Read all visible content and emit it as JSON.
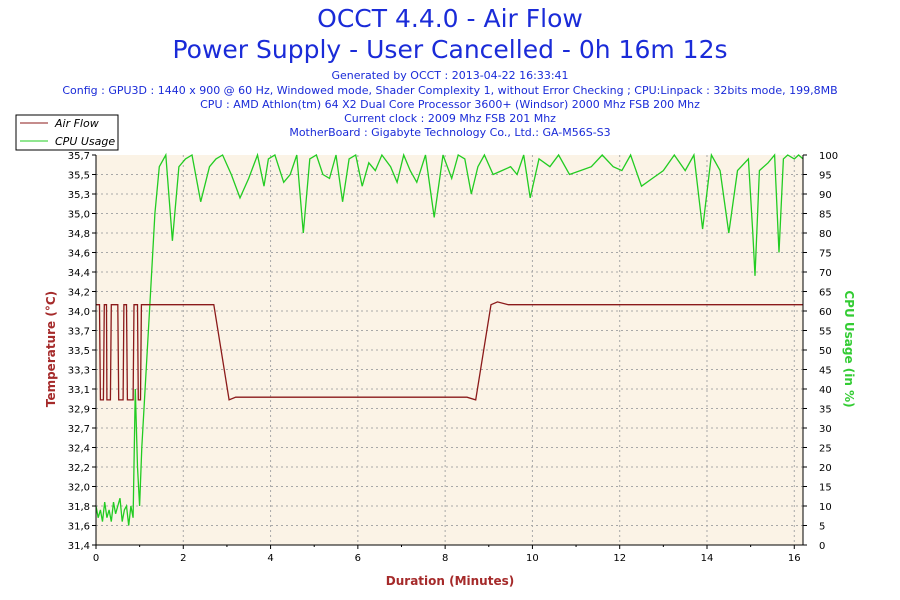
{
  "header": {
    "title": "OCCT 4.4.0 - Air Flow",
    "subtitle": "Power Supply - User Cancelled - 0h 16m 12s",
    "info_lines": [
      "Generated by OCCT : 2013-04-22 16:33:41",
      "Config : GPU3D : 1440 x 900 @ 60 Hz, Windowed mode, Shader Complexity 1, without Error Checking ; CPU:Linpack : 32bits mode, 199,8MB",
      "CPU : AMD Athlon(tm) 64 X2 Dual Core Processor 3600+ (Windsor) 2000 Mhz FSB 200 Mhz",
      "Current clock : 2009 Mhz FSB 201 Mhz",
      "MotherBoard : Gigabyte Technology Co., Ltd.: GA-M56S-S3"
    ]
  },
  "colors": {
    "title": "#1a2bd8",
    "plot_background": "#fbf3e6",
    "grid": "#a8a8a8",
    "air_flow": "#8b1a1a",
    "cpu_usage": "#22cc22",
    "left_axis_label": "#a52a2a",
    "right_axis_label": "#33cc33",
    "x_axis_label": "#a52a2a"
  },
  "chart_data": {
    "type": "line",
    "xlabel": "Duration (Minutes)",
    "ylabel": "Temperature (°C)",
    "y2label": "CPU Usage (in %)",
    "xlim": [
      0,
      16.2
    ],
    "ylim": [
      31.4,
      35.7
    ],
    "y2lim": [
      0,
      100
    ],
    "x_ticks": [
      "0",
      "2",
      "4",
      "6",
      "8",
      "10",
      "12",
      "14",
      "16"
    ],
    "y_tick_labels": [
      "31,4",
      "31,6",
      "31,8",
      "32,0",
      "32,2",
      "32,4",
      "32,7",
      "32,9",
      "33,1",
      "33,3",
      "33,5",
      "33,7",
      "34,0",
      "34,2",
      "34,4",
      "34,6",
      "34,8",
      "35,0",
      "35,3",
      "35,5",
      "35,7"
    ],
    "y2_tick_labels": [
      "0",
      "5",
      "10",
      "15",
      "20",
      "25",
      "30",
      "35",
      "40",
      "45",
      "50",
      "55",
      "60",
      "65",
      "70",
      "75",
      "80",
      "85",
      "90",
      "95",
      "100"
    ],
    "legend": {
      "position": "top-left",
      "entries": [
        "Air Flow",
        "CPU Usage"
      ]
    },
    "grid": true,
    "series": [
      {
        "name": "Air Flow",
        "axis": "left",
        "points": [
          [
            0,
            34.05
          ],
          [
            0.08,
            34.05
          ],
          [
            0.1,
            33.0
          ],
          [
            0.17,
            33.0
          ],
          [
            0.19,
            34.05
          ],
          [
            0.24,
            34.05
          ],
          [
            0.25,
            33.0
          ],
          [
            0.33,
            33.0
          ],
          [
            0.35,
            34.05
          ],
          [
            0.5,
            34.05
          ],
          [
            0.52,
            33.0
          ],
          [
            0.62,
            33.0
          ],
          [
            0.64,
            34.05
          ],
          [
            0.7,
            34.05
          ],
          [
            0.72,
            33.0
          ],
          [
            0.85,
            33.0
          ],
          [
            0.87,
            34.05
          ],
          [
            0.95,
            34.05
          ],
          [
            0.97,
            33.0
          ],
          [
            1.02,
            33.0
          ],
          [
            1.04,
            34.05
          ],
          [
            2.7,
            34.05
          ],
          [
            3.05,
            33.0
          ],
          [
            3.2,
            33.03
          ],
          [
            8.5,
            33.03
          ],
          [
            8.7,
            33.0
          ],
          [
            9.05,
            34.05
          ],
          [
            9.2,
            34.08
          ],
          [
            9.45,
            34.05
          ],
          [
            16.2,
            34.05
          ]
        ]
      },
      {
        "name": "CPU Usage",
        "axis": "right",
        "points": [
          [
            0,
            10
          ],
          [
            0.05,
            7
          ],
          [
            0.1,
            9
          ],
          [
            0.15,
            6
          ],
          [
            0.2,
            11
          ],
          [
            0.25,
            7
          ],
          [
            0.3,
            9
          ],
          [
            0.35,
            6
          ],
          [
            0.4,
            11
          ],
          [
            0.45,
            8
          ],
          [
            0.5,
            10
          ],
          [
            0.55,
            12
          ],
          [
            0.6,
            6
          ],
          [
            0.65,
            9
          ],
          [
            0.7,
            10
          ],
          [
            0.75,
            5
          ],
          [
            0.8,
            10
          ],
          [
            0.85,
            7
          ],
          [
            0.9,
            40
          ],
          [
            0.95,
            20
          ],
          [
            1.0,
            10
          ],
          [
            1.05,
            25
          ],
          [
            1.15,
            45
          ],
          [
            1.25,
            65
          ],
          [
            1.35,
            85
          ],
          [
            1.45,
            97
          ],
          [
            1.6,
            100
          ],
          [
            1.75,
            78
          ],
          [
            1.9,
            97
          ],
          [
            2.05,
            99
          ],
          [
            2.2,
            100
          ],
          [
            2.4,
            88
          ],
          [
            2.6,
            97
          ],
          [
            2.75,
            99
          ],
          [
            2.9,
            100
          ],
          [
            3.1,
            95
          ],
          [
            3.3,
            89
          ],
          [
            3.5,
            94
          ],
          [
            3.7,
            100
          ],
          [
            3.85,
            92
          ],
          [
            3.95,
            99
          ],
          [
            4.1,
            100
          ],
          [
            4.3,
            93
          ],
          [
            4.45,
            95
          ],
          [
            4.6,
            100
          ],
          [
            4.75,
            80
          ],
          [
            4.9,
            99
          ],
          [
            5.05,
            100
          ],
          [
            5.2,
            95
          ],
          [
            5.35,
            94
          ],
          [
            5.5,
            100
          ],
          [
            5.65,
            88
          ],
          [
            5.8,
            99
          ],
          [
            5.95,
            100
          ],
          [
            6.1,
            92
          ],
          [
            6.25,
            98
          ],
          [
            6.4,
            96
          ],
          [
            6.55,
            100
          ],
          [
            6.75,
            97
          ],
          [
            6.9,
            93
          ],
          [
            7.05,
            100
          ],
          [
            7.2,
            96
          ],
          [
            7.35,
            93
          ],
          [
            7.55,
            100
          ],
          [
            7.75,
            84
          ],
          [
            7.95,
            100
          ],
          [
            8.15,
            94
          ],
          [
            8.3,
            100
          ],
          [
            8.45,
            99
          ],
          [
            8.6,
            90
          ],
          [
            8.75,
            97
          ],
          [
            8.9,
            100
          ],
          [
            9.1,
            95
          ],
          [
            9.3,
            96
          ],
          [
            9.5,
            97
          ],
          [
            9.65,
            95
          ],
          [
            9.8,
            100
          ],
          [
            9.95,
            89
          ],
          [
            10.15,
            99
          ],
          [
            10.4,
            97
          ],
          [
            10.6,
            100
          ],
          [
            10.85,
            95
          ],
          [
            11.1,
            96
          ],
          [
            11.35,
            97
          ],
          [
            11.6,
            100
          ],
          [
            11.85,
            97
          ],
          [
            12.05,
            96
          ],
          [
            12.25,
            100
          ],
          [
            12.5,
            92
          ],
          [
            12.75,
            94
          ],
          [
            13.0,
            96
          ],
          [
            13.25,
            100
          ],
          [
            13.5,
            96
          ],
          [
            13.7,
            100
          ],
          [
            13.9,
            81
          ],
          [
            14.1,
            100
          ],
          [
            14.3,
            96
          ],
          [
            14.5,
            80
          ],
          [
            14.7,
            96
          ],
          [
            14.95,
            99
          ],
          [
            15.05,
            80
          ],
          [
            15.1,
            69
          ],
          [
            15.2,
            96
          ],
          [
            15.4,
            98
          ],
          [
            15.55,
            100
          ],
          [
            15.65,
            75
          ],
          [
            15.75,
            99
          ],
          [
            15.85,
            100
          ],
          [
            16.0,
            99
          ],
          [
            16.1,
            100
          ],
          [
            16.2,
            99
          ]
        ]
      }
    ]
  }
}
